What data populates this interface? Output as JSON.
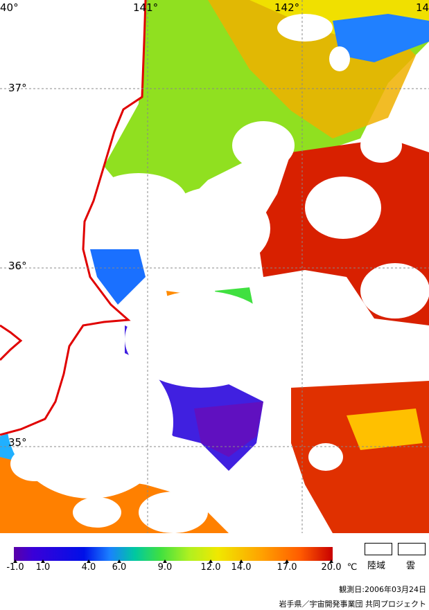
{
  "map": {
    "longitude_labels": [
      "40°",
      "141°",
      "142°",
      "14"
    ],
    "latitude_labels": [
      "37°",
      "36°",
      "35°"
    ]
  },
  "legend": {
    "ticks": [
      "-1.0",
      "1.0",
      "4.0",
      "6.0",
      "9.0",
      "12.0",
      "14.0",
      "17.0",
      "20.0"
    ],
    "unit": "℃",
    "colors": [
      "#5a00a8",
      "#0010e8",
      "#1a80ff",
      "#00c8a0",
      "#40e040",
      "#b0f020",
      "#f0e800",
      "#ffa000",
      "#ff5a00",
      "#c80000"
    ],
    "land_label": "陸域",
    "cloud_label": "雲"
  },
  "footer": {
    "observation_date": "観測日:2006年03月24日",
    "credit": "岩手県／宇宙開発事業団 共同プロジェクト"
  }
}
